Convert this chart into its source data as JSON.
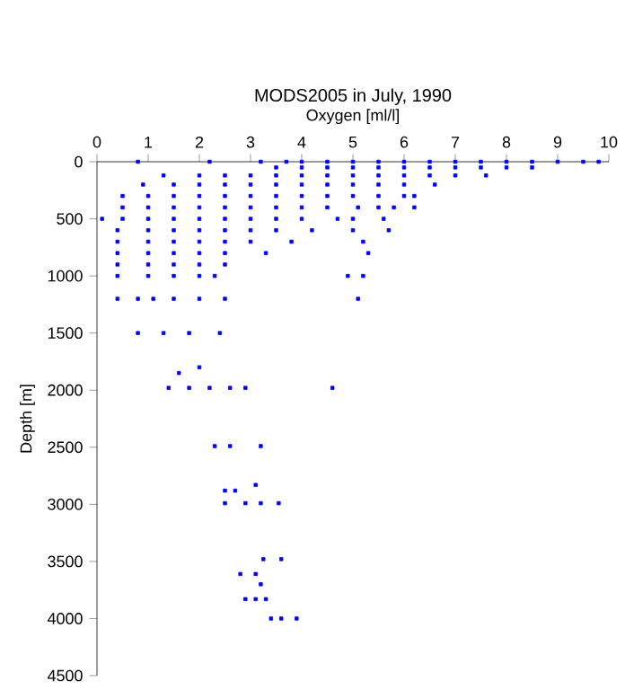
{
  "chart_data": {
    "type": "scatter",
    "title": "MODS2005 in July, 1990",
    "xlabel": "Oxygen [ml/l]",
    "ylabel": "Depth [m]",
    "xlim": [
      0,
      10
    ],
    "xticks": [
      0,
      1,
      2,
      3,
      4,
      5,
      6,
      7,
      8,
      9,
      10
    ],
    "ylim": [
      4500,
      0
    ],
    "yticks": [
      0,
      500,
      1000,
      1500,
      2000,
      2500,
      3000,
      3500,
      4000,
      4500
    ],
    "marker": "square",
    "series": [
      {
        "color": "#0000ff",
        "x": [
          0.8,
          2.2,
          3.2,
          3.7,
          4.0,
          4.5,
          5.0,
          5.5,
          6.0,
          6.5,
          7.0,
          7.5,
          8.0,
          8.5,
          9.0,
          9.5,
          9.8,
          3.5,
          4.0,
          4.5,
          5.0,
          5.5,
          6.0,
          6.5,
          7.0,
          7.5,
          8.0,
          8.5,
          1.3,
          2.0,
          2.5,
          3.0,
          3.5,
          4.0,
          4.5,
          5.0,
          5.5,
          6.0,
          6.5,
          7.0,
          7.6,
          0.9,
          1.5,
          2.0,
          2.5,
          3.0,
          3.5,
          4.0,
          4.5,
          5.0,
          5.5,
          6.0,
          6.6,
          0.5,
          1.0,
          1.5,
          2.0,
          2.5,
          3.0,
          3.5,
          4.0,
          4.5,
          5.0,
          5.5,
          6.0,
          6.2,
          0.5,
          1.0,
          1.5,
          2.0,
          2.5,
          3.0,
          3.5,
          4.0,
          4.5,
          5.1,
          5.5,
          5.8,
          6.2,
          0.1,
          0.5,
          1.0,
          1.5,
          2.0,
          2.5,
          3.0,
          3.5,
          4.0,
          4.7,
          5.0,
          5.6,
          0.4,
          1.0,
          1.5,
          2.0,
          2.5,
          3.0,
          3.5,
          4.2,
          5.0,
          5.7,
          0.4,
          1.0,
          1.5,
          2.0,
          2.5,
          3.0,
          3.8,
          5.2,
          0.4,
          1.0,
          1.5,
          2.0,
          2.5,
          3.3,
          5.3,
          0.4,
          1.0,
          1.5,
          2.0,
          2.5,
          0.4,
          1.0,
          1.5,
          2.0,
          2.3,
          4.9,
          5.2,
          0.4,
          0.8,
          1.1,
          1.5,
          2.0,
          2.5,
          5.1,
          0.8,
          1.3,
          1.8,
          2.4,
          2.0,
          1.6,
          1.4,
          1.8,
          2.2,
          2.6,
          2.9,
          4.6,
          2.3,
          2.6,
          3.2,
          3.1,
          2.5,
          2.7,
          2.5,
          2.9,
          3.2,
          3.55,
          3.25,
          3.6,
          2.8,
          3.1,
          3.2,
          2.9,
          3.1,
          3.3,
          3.4,
          3.6,
          3.9
        ],
        "values": [
          0,
          0,
          0,
          0,
          0,
          0,
          0,
          0,
          0,
          0,
          0,
          0,
          0,
          0,
          0,
          0,
          0,
          50,
          50,
          50,
          50,
          50,
          50,
          50,
          50,
          50,
          50,
          50,
          120,
          120,
          120,
          120,
          120,
          120,
          120,
          120,
          120,
          120,
          120,
          120,
          120,
          200,
          200,
          200,
          200,
          200,
          200,
          200,
          200,
          200,
          200,
          200,
          200,
          300,
          300,
          300,
          300,
          300,
          300,
          300,
          300,
          300,
          300,
          300,
          300,
          300,
          400,
          400,
          400,
          400,
          400,
          400,
          400,
          400,
          400,
          400,
          400,
          400,
          400,
          500,
          500,
          500,
          500,
          500,
          500,
          500,
          500,
          500,
          500,
          500,
          500,
          600,
          600,
          600,
          600,
          600,
          600,
          600,
          600,
          600,
          600,
          700,
          700,
          700,
          700,
          700,
          700,
          700,
          700,
          800,
          800,
          800,
          800,
          800,
          800,
          800,
          900,
          900,
          900,
          900,
          900,
          1000,
          1000,
          1000,
          1000,
          1000,
          1000,
          1000,
          1200,
          1200,
          1200,
          1200,
          1200,
          1200,
          1200,
          1500,
          1500,
          1500,
          1500,
          1800,
          1850,
          1980,
          1980,
          1980,
          1980,
          1980,
          1980,
          2490,
          2490,
          2490,
          2830,
          2880,
          2880,
          2990,
          2990,
          2990,
          2990,
          3480,
          3480,
          3610,
          3610,
          3700,
          3830,
          3830,
          3830,
          4000,
          4000,
          4000
        ]
      }
    ]
  }
}
